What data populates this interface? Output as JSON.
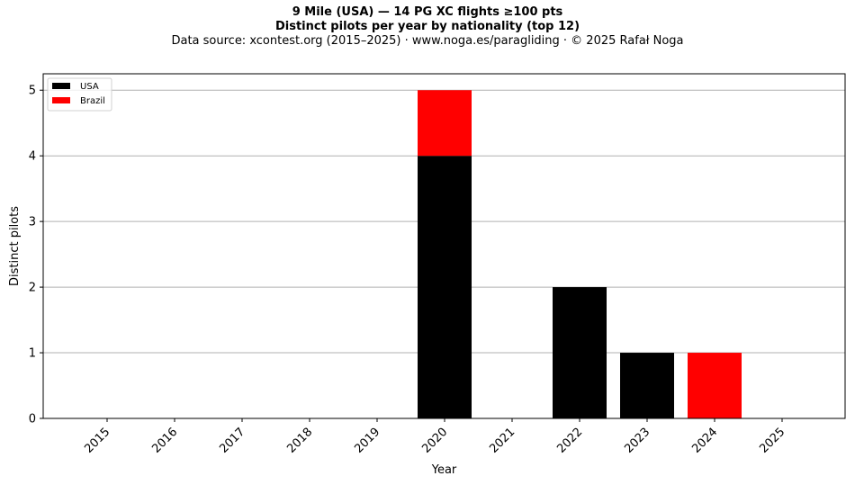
{
  "header": {
    "title": "9 Mile (USA)  —  14 PG XC flights ≥100 pts",
    "subtitle": "Distinct pilots per year by nationality (top 12)",
    "source": "Data source: xcontest.org (2015–2025)  ·  www.noga.es/paragliding  ·  © 2025 Rafał Noga"
  },
  "chart_data": {
    "type": "bar",
    "stacked": true,
    "categories": [
      "2015",
      "2016",
      "2017",
      "2018",
      "2019",
      "2020",
      "2021",
      "2022",
      "2023",
      "2024",
      "2025"
    ],
    "series": [
      {
        "name": "USA",
        "color": "#000000",
        "values": [
          0,
          0,
          0,
          0,
          0,
          4,
          0,
          2,
          1,
          0,
          0
        ]
      },
      {
        "name": "Brazil",
        "color": "#ff0000",
        "values": [
          0,
          0,
          0,
          0,
          0,
          1,
          0,
          0,
          0,
          1,
          0
        ]
      }
    ],
    "xlabel": "Year",
    "ylabel": "Distinct pilots",
    "ylim": [
      0,
      5.25
    ],
    "yticks": [
      0,
      1,
      2,
      3,
      4,
      5
    ],
    "grid": "y",
    "legend": "top-left"
  }
}
